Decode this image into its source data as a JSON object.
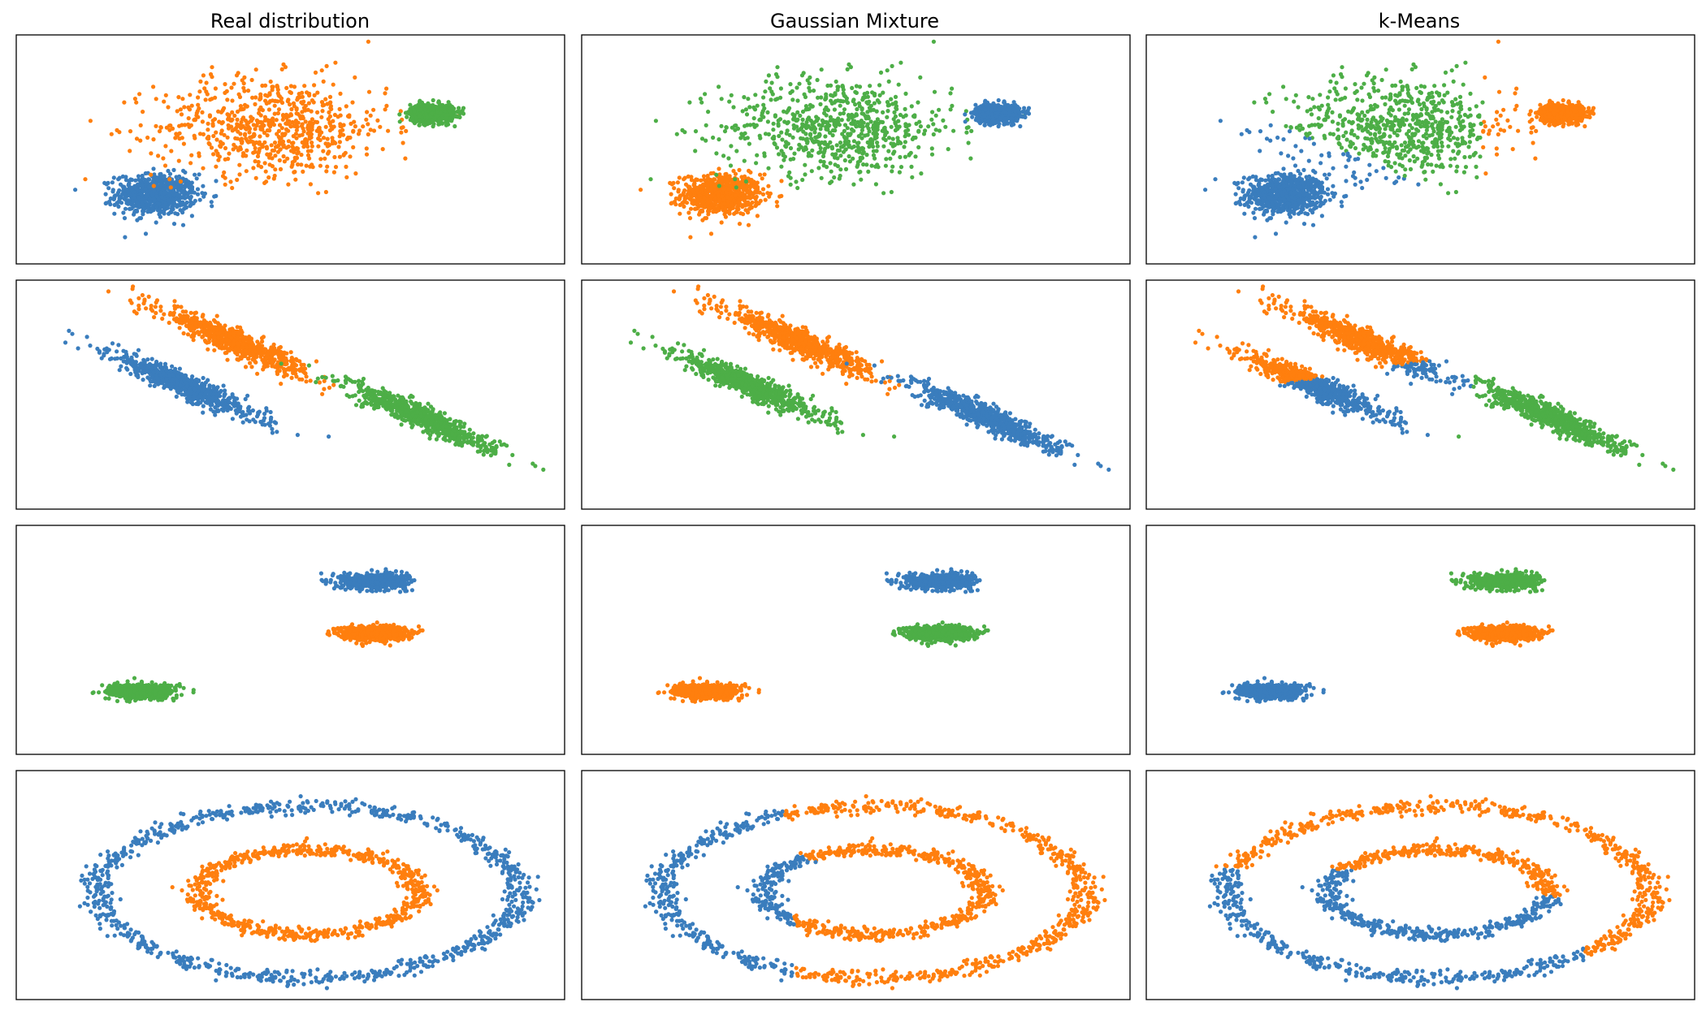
{
  "colors": {
    "blue": "#3a7dbd",
    "orange": "#ff7f0e",
    "green": "#4dae47"
  },
  "column_titles": [
    "Real distribution",
    "Gaussian Mixture",
    "k-Means"
  ],
  "chart_data": [
    {
      "type": "scatter",
      "row": 1,
      "title": "",
      "grid": false,
      "axes_visible": false,
      "xlim": [
        -5,
        10
      ],
      "ylim": [
        -4,
        6
      ],
      "clusters": [
        {
          "id": "tight_left",
          "center": [
            -1.2,
            -1.0
          ],
          "sd": [
            0.55,
            0.45
          ],
          "n": 700
        },
        {
          "id": "wide_middle",
          "center": [
            2.0,
            2.0
          ],
          "sd": [
            1.6,
            1.1
          ],
          "n": 700
        },
        {
          "id": "tight_right",
          "center": [
            6.4,
            2.6
          ],
          "sd": [
            0.3,
            0.2
          ],
          "n": 700
        }
      ],
      "panels": [
        {
          "title": "Real distribution",
          "colors": [
            "blue",
            "orange",
            "green"
          ]
        },
        {
          "title": "Gaussian Mixture",
          "colors": [
            "orange",
            "green",
            "blue"
          ]
        },
        {
          "title": "k-Means",
          "rule": "kmeans_row1"
        }
      ]
    },
    {
      "type": "scatter",
      "row": 2,
      "title": "",
      "grid": false,
      "axes_visible": false,
      "xlim": [
        -5,
        10
      ],
      "ylim": [
        -4,
        6
      ],
      "clusters": [
        {
          "id": "lower_left_band",
          "center": [
            -0.4,
            1.4
          ],
          "direction": [
            1,
            -0.72
          ],
          "sd_along": 1.25,
          "sd_across": 0.22,
          "n": 700
        },
        {
          "id": "upper_left_band",
          "center": [
            1.0,
            3.3
          ],
          "direction": [
            1,
            -0.72
          ],
          "sd_along": 1.25,
          "sd_across": 0.22,
          "n": 700
        },
        {
          "id": "right_band",
          "center": [
            6.1,
            0.0
          ],
          "direction": [
            1,
            -0.72
          ],
          "sd_along": 1.25,
          "sd_across": 0.22,
          "n": 700
        }
      ],
      "panels": [
        {
          "title": "Real distribution",
          "colors": [
            "blue",
            "orange",
            "green"
          ]
        },
        {
          "title": "Gaussian Mixture",
          "colors": [
            "green",
            "orange",
            "blue"
          ]
        },
        {
          "title": "k-Means",
          "rule": "kmeans_row2"
        }
      ]
    },
    {
      "type": "scatter",
      "row": 3,
      "title": "",
      "grid": false,
      "axes_visible": false,
      "xlim": [
        -5,
        10
      ],
      "ylim": [
        -4,
        6
      ],
      "clusters": [
        {
          "id": "upper_right",
          "center": [
            4.8,
            3.6
          ],
          "sd": [
            0.45,
            0.16
          ],
          "n": 700
        },
        {
          "id": "middle_right",
          "center": [
            4.8,
            1.3
          ],
          "sd": [
            0.45,
            0.16
          ],
          "n": 700
        },
        {
          "id": "lower_left",
          "center": [
            -1.6,
            -1.3
          ],
          "sd": [
            0.45,
            0.16
          ],
          "n": 700
        }
      ],
      "panels": [
        {
          "title": "Real distribution",
          "colors": [
            "blue",
            "orange",
            "green"
          ]
        },
        {
          "title": "Gaussian Mixture",
          "colors": [
            "blue",
            "green",
            "orange"
          ]
        },
        {
          "title": "k-Means",
          "colors": [
            "green",
            "orange",
            "blue"
          ]
        }
      ]
    },
    {
      "type": "scatter",
      "row": 4,
      "title": "",
      "grid": false,
      "axes_visible": false,
      "xlim": [
        -5,
        10
      ],
      "ylim": [
        -4,
        6
      ],
      "clusters": [
        {
          "id": "outer_ring",
          "center": [
            3.0,
            0.7
          ],
          "radius": [
            5.8,
            3.8
          ],
          "sd": 0.17,
          "n": 900
        },
        {
          "id": "inner_ring",
          "center": [
            3.0,
            0.7
          ],
          "radius": [
            3.0,
            1.9
          ],
          "sd": 0.17,
          "n": 700
        }
      ],
      "panels": [
        {
          "title": "Real distribution",
          "colors": [
            "blue",
            "orange"
          ]
        },
        {
          "title": "Gaussian Mixture",
          "rule": "gmm_rings"
        },
        {
          "title": "k-Means",
          "rule": "kmeans_rings"
        }
      ]
    }
  ]
}
